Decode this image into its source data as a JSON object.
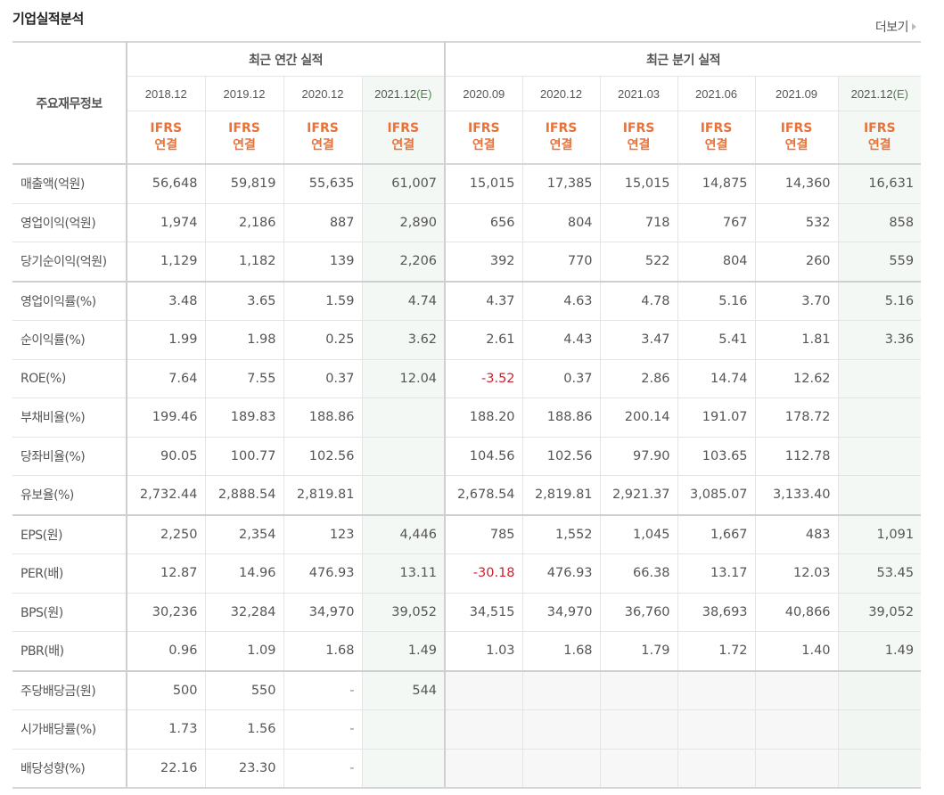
{
  "header": {
    "title": "기업실적분석",
    "more_label": "더보기"
  },
  "table": {
    "corner_label": "주요재무정보",
    "groups": {
      "annual": "최근 연간 실적",
      "quarterly": "최근 분기 실적"
    },
    "columns": [
      {
        "date": "2018.12",
        "est": "",
        "std1": "IFRS",
        "std2": "연결"
      },
      {
        "date": "2019.12",
        "est": "",
        "std1": "IFRS",
        "std2": "연결"
      },
      {
        "date": "2020.12",
        "est": "",
        "std1": "IFRS",
        "std2": "연결"
      },
      {
        "date": "2021.12",
        "est": "(E)",
        "std1": "IFRS",
        "std2": "연결"
      },
      {
        "date": "2020.09",
        "est": "",
        "std1": "IFRS",
        "std2": "연결"
      },
      {
        "date": "2020.12",
        "est": "",
        "std1": "IFRS",
        "std2": "연결"
      },
      {
        "date": "2021.03",
        "est": "",
        "std1": "IFRS",
        "std2": "연결"
      },
      {
        "date": "2021.06",
        "est": "",
        "std1": "IFRS",
        "std2": "연결"
      },
      {
        "date": "2021.09",
        "est": "",
        "std1": "IFRS",
        "std2": "연결"
      },
      {
        "date": "2021.12",
        "est": "(E)",
        "std1": "IFRS",
        "std2": "연결"
      }
    ],
    "rows": [
      {
        "label": "매출액(억원)",
        "values": [
          "56,648",
          "59,819",
          "55,635",
          "61,007",
          "15,015",
          "17,385",
          "15,015",
          "14,875",
          "14,360",
          "16,631"
        ]
      },
      {
        "label": "영업이익(억원)",
        "values": [
          "1,974",
          "2,186",
          "887",
          "2,890",
          "656",
          "804",
          "718",
          "767",
          "532",
          "858"
        ]
      },
      {
        "label": "당기순이익(억원)",
        "values": [
          "1,129",
          "1,182",
          "139",
          "2,206",
          "392",
          "770",
          "522",
          "804",
          "260",
          "559"
        ]
      },
      {
        "label": "영업이익률(%)",
        "values": [
          "3.48",
          "3.65",
          "1.59",
          "4.74",
          "4.37",
          "4.63",
          "4.78",
          "5.16",
          "3.70",
          "5.16"
        ]
      },
      {
        "label": "순이익률(%)",
        "values": [
          "1.99",
          "1.98",
          "0.25",
          "3.62",
          "2.61",
          "4.43",
          "3.47",
          "5.41",
          "1.81",
          "3.36"
        ]
      },
      {
        "label": "ROE(%)",
        "values": [
          "7.64",
          "7.55",
          "0.37",
          "12.04",
          "-3.52",
          "0.37",
          "2.86",
          "14.74",
          "12.62",
          ""
        ]
      },
      {
        "label": "부채비율(%)",
        "values": [
          "199.46",
          "189.83",
          "188.86",
          "",
          "188.20",
          "188.86",
          "200.14",
          "191.07",
          "178.72",
          ""
        ]
      },
      {
        "label": "당좌비율(%)",
        "values": [
          "90.05",
          "100.77",
          "102.56",
          "",
          "104.56",
          "102.56",
          "97.90",
          "103.65",
          "112.78",
          ""
        ]
      },
      {
        "label": "유보율(%)",
        "values": [
          "2,732.44",
          "2,888.54",
          "2,819.81",
          "",
          "2,678.54",
          "2,819.81",
          "2,921.37",
          "3,085.07",
          "3,133.40",
          ""
        ]
      },
      {
        "label": "EPS(원)",
        "values": [
          "2,250",
          "2,354",
          "123",
          "4,446",
          "785",
          "1,552",
          "1,045",
          "1,667",
          "483",
          "1,091"
        ]
      },
      {
        "label": "PER(배)",
        "values": [
          "12.87",
          "14.96",
          "476.93",
          "13.11",
          "-30.18",
          "476.93",
          "66.38",
          "13.17",
          "12.03",
          "53.45"
        ]
      },
      {
        "label": "BPS(원)",
        "values": [
          "30,236",
          "32,284",
          "34,970",
          "39,052",
          "34,515",
          "34,970",
          "36,760",
          "38,693",
          "40,866",
          "39,052"
        ]
      },
      {
        "label": "PBR(배)",
        "values": [
          "0.96",
          "1.09",
          "1.68",
          "1.49",
          "1.03",
          "1.68",
          "1.79",
          "1.72",
          "1.40",
          "1.49"
        ]
      },
      {
        "label": "주당배당금(원)",
        "values": [
          "500",
          "550",
          "-",
          "544",
          "",
          "",
          "",
          "",
          "",
          ""
        ]
      },
      {
        "label": "시가배당률(%)",
        "values": [
          "1.73",
          "1.56",
          "-",
          "",
          "",
          "",
          "",
          "",
          "",
          ""
        ]
      },
      {
        "label": "배당성향(%)",
        "values": [
          "22.16",
          "23.30",
          "-",
          "",
          "",
          "",
          "",
          "",
          "",
          ""
        ]
      }
    ]
  },
  "colors": {
    "accent_orange": "#e8733a",
    "negative_red": "#d0202c",
    "estimate_bg": "#f4f8f5",
    "estimate_green": "#4a8a4a"
  }
}
